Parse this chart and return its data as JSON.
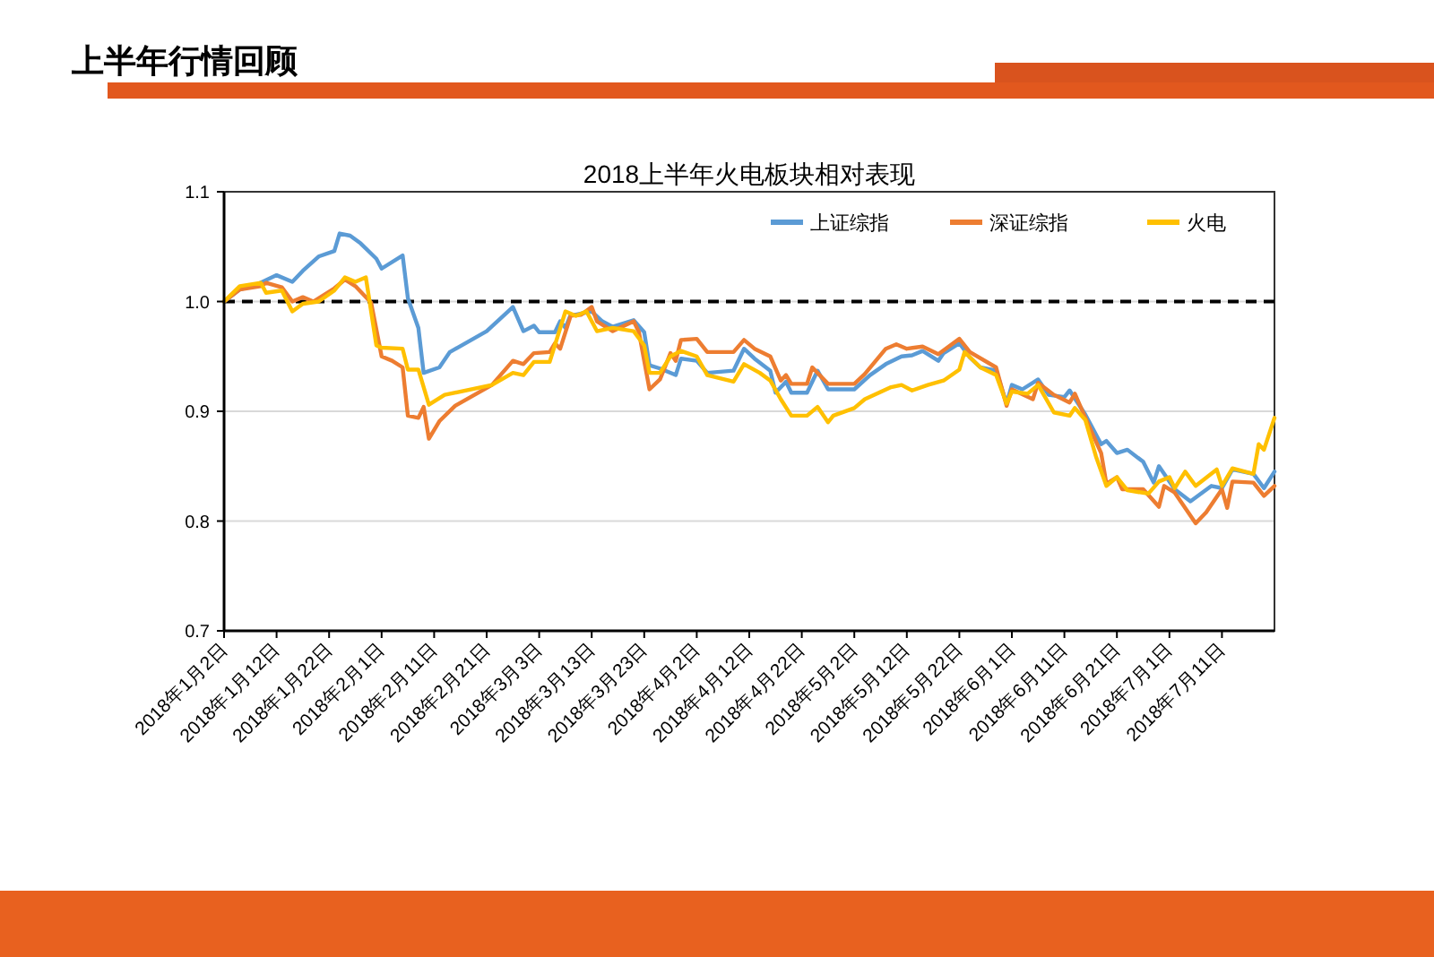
{
  "chart_data": {
    "type": "line",
    "title": "上半年行情回顾",
    "subtitle": "2018上半年火电板块相对表现",
    "xlim": [
      "2018-01-02",
      "2018-07-21"
    ],
    "xticks": [
      {
        "value": "2018-01-02",
        "label": "2018年1月2日"
      },
      {
        "value": "2018-01-12",
        "label": "2018年1月12日"
      },
      {
        "value": "2018-01-22",
        "label": "2018年1月22日"
      },
      {
        "value": "2018-02-01",
        "label": "2018年2月1日"
      },
      {
        "value": "2018-02-11",
        "label": "2018年2月11日"
      },
      {
        "value": "2018-02-21",
        "label": "2018年2月21日"
      },
      {
        "value": "2018-03-03",
        "label": "2018年3月3日"
      },
      {
        "value": "2018-03-13",
        "label": "2018年3月13日"
      },
      {
        "value": "2018-03-23",
        "label": "2018年3月23日"
      },
      {
        "value": "2018-04-02",
        "label": "2018年4月2日"
      },
      {
        "value": "2018-04-12",
        "label": "2018年4月12日"
      },
      {
        "value": "2018-04-22",
        "label": "2018年4月22日"
      },
      {
        "value": "2018-05-02",
        "label": "2018年5月2日"
      },
      {
        "value": "2018-05-12",
        "label": "2018年5月12日"
      },
      {
        "value": "2018-05-22",
        "label": "2018年5月22日"
      },
      {
        "value": "2018-06-01",
        "label": "2018年6月1日"
      },
      {
        "value": "2018-06-11",
        "label": "2018年6月11日"
      },
      {
        "value": "2018-06-21",
        "label": "2018年6月21日"
      },
      {
        "value": "2018-07-01",
        "label": "2018年7月1日"
      },
      {
        "value": "2018-07-11",
        "label": "2018年7月11日"
      }
    ],
    "ylim": [
      0.7,
      1.1
    ],
    "yticks": [
      0.7,
      0.8,
      0.9,
      {
        "value": 1,
        "label": "1.0"
      },
      1.1
    ],
    "grid": "y",
    "legend": "top right",
    "line_style": "solid",
    "ref_lines": [
      {
        "axis": "y",
        "value": 1,
        "color": "#000000",
        "line_style": "dashed"
      }
    ],
    "series": [
      {
        "name": "上证综指",
        "color": "#5b9bd5",
        "x": [
          "2018-01-02",
          "2018-01-05",
          "2018-01-08",
          "2018-01-12",
          "2018-01-15",
          "2018-01-17",
          "2018-01-20",
          "2018-01-23",
          "2018-01-24",
          "2018-01-26",
          "2018-01-28",
          "2018-01-31",
          "2018-02-01",
          "2018-02-05",
          "2018-02-06",
          "2018-02-08",
          "2018-02-09",
          "2018-02-12",
          "2018-02-14",
          "2018-02-21",
          "2018-02-26",
          "2018-02-28",
          "2018-03-02",
          "2018-03-03",
          "2018-03-06",
          "2018-03-07",
          "2018-03-08",
          "2018-03-09",
          "2018-03-10",
          "2018-03-13",
          "2018-03-15",
          "2018-03-17",
          "2018-03-21",
          "2018-03-23",
          "2018-03-24",
          "2018-03-26",
          "2018-03-29",
          "2018-03-30",
          "2018-04-02",
          "2018-04-04",
          "2018-04-09",
          "2018-04-11",
          "2018-04-13",
          "2018-04-16",
          "2018-04-17",
          "2018-04-19",
          "2018-04-20",
          "2018-04-23",
          "2018-04-25",
          "2018-04-27",
          "2018-05-02",
          "2018-05-05",
          "2018-05-08",
          "2018-05-11",
          "2018-05-13",
          "2018-05-15",
          "2018-05-18",
          "2018-05-19",
          "2018-05-22",
          "2018-05-24",
          "2018-05-26",
          "2018-05-29",
          "2018-05-31",
          "2018-06-01",
          "2018-06-03",
          "2018-06-06",
          "2018-06-08",
          "2018-06-11",
          "2018-06-12",
          "2018-06-15",
          "2018-06-18",
          "2018-06-19",
          "2018-06-21",
          "2018-06-23",
          "2018-06-26",
          "2018-06-28",
          "2018-06-29",
          "2018-07-02",
          "2018-07-05",
          "2018-07-09",
          "2018-07-11",
          "2018-07-13",
          "2018-07-17",
          "2018-07-19",
          "2018-07-21"
        ],
        "values": [
          1.0,
          1.011,
          1.015,
          1.024,
          1.018,
          1.028,
          1.041,
          1.046,
          1.062,
          1.06,
          1.053,
          1.039,
          1.03,
          1.042,
          1.003,
          0.976,
          0.935,
          0.94,
          0.954,
          0.973,
          0.995,
          0.973,
          0.978,
          0.972,
          0.972,
          0.982,
          0.976,
          0.988,
          0.988,
          0.991,
          0.982,
          0.977,
          0.983,
          0.972,
          0.942,
          0.939,
          0.933,
          0.948,
          0.946,
          0.935,
          0.937,
          0.957,
          0.948,
          0.937,
          0.917,
          0.927,
          0.917,
          0.917,
          0.937,
          0.92,
          0.92,
          0.933,
          0.943,
          0.95,
          0.951,
          0.955,
          0.946,
          0.953,
          0.962,
          0.949,
          0.94,
          0.937,
          0.907,
          0.924,
          0.92,
          0.929,
          0.915,
          0.913,
          0.919,
          0.897,
          0.87,
          0.873,
          0.862,
          0.865,
          0.854,
          0.835,
          0.85,
          0.829,
          0.818,
          0.832,
          0.83,
          0.847,
          0.843,
          0.83,
          0.845
        ]
      },
      {
        "name": "深证综指",
        "color": "#ed7d31",
        "x": [
          "2018-01-02",
          "2018-01-05",
          "2018-01-09",
          "2018-01-10",
          "2018-01-13",
          "2018-01-15",
          "2018-01-17",
          "2018-01-19",
          "2018-01-23",
          "2018-01-25",
          "2018-01-27",
          "2018-01-30",
          "2018-02-01",
          "2018-02-03",
          "2018-02-05",
          "2018-02-06",
          "2018-02-08",
          "2018-02-09",
          "2018-02-10",
          "2018-02-12",
          "2018-02-15",
          "2018-02-22",
          "2018-02-26",
          "2018-02-28",
          "2018-03-02",
          "2018-03-05",
          "2018-03-06",
          "2018-03-07",
          "2018-03-09",
          "2018-03-11",
          "2018-03-13",
          "2018-03-14",
          "2018-03-17",
          "2018-03-21",
          "2018-03-22",
          "2018-03-24",
          "2018-03-26",
          "2018-03-28",
          "2018-03-29",
          "2018-03-30",
          "2018-04-02",
          "2018-04-04",
          "2018-04-09",
          "2018-04-11",
          "2018-04-13",
          "2018-04-16",
          "2018-04-18",
          "2018-04-19",
          "2018-04-20",
          "2018-04-23",
          "2018-04-24",
          "2018-04-27",
          "2018-05-02",
          "2018-05-04",
          "2018-05-08",
          "2018-05-10",
          "2018-05-12",
          "2018-05-15",
          "2018-05-18",
          "2018-05-22",
          "2018-05-24",
          "2018-05-29",
          "2018-05-31",
          "2018-06-01",
          "2018-06-05",
          "2018-06-06",
          "2018-06-09",
          "2018-06-12",
          "2018-06-13",
          "2018-06-15",
          "2018-06-18",
          "2018-06-19",
          "2018-06-21",
          "2018-06-22",
          "2018-06-26",
          "2018-06-29",
          "2018-06-30",
          "2018-07-02",
          "2018-07-06",
          "2018-07-08",
          "2018-07-11",
          "2018-07-12",
          "2018-07-13",
          "2018-07-17",
          "2018-07-19",
          "2018-07-21"
        ],
        "values": [
          1.0,
          1.011,
          1.014,
          1.017,
          1.013,
          1.0,
          1.004,
          1.0,
          1.012,
          1.02,
          1.014,
          0.999,
          0.95,
          0.946,
          0.94,
          0.896,
          0.894,
          0.904,
          0.875,
          0.891,
          0.905,
          0.924,
          0.946,
          0.943,
          0.953,
          0.954,
          0.962,
          0.957,
          0.987,
          0.988,
          0.995,
          0.982,
          0.973,
          0.982,
          0.972,
          0.92,
          0.929,
          0.953,
          0.946,
          0.965,
          0.966,
          0.954,
          0.954,
          0.965,
          0.957,
          0.95,
          0.928,
          0.933,
          0.925,
          0.925,
          0.94,
          0.925,
          0.925,
          0.934,
          0.957,
          0.961,
          0.957,
          0.959,
          0.952,
          0.966,
          0.954,
          0.94,
          0.905,
          0.92,
          0.911,
          0.926,
          0.915,
          0.908,
          0.916,
          0.894,
          0.862,
          0.834,
          0.84,
          0.829,
          0.829,
          0.813,
          0.832,
          0.826,
          0.798,
          0.808,
          0.829,
          0.812,
          0.836,
          0.835,
          0.823,
          0.832
        ]
      },
      {
        "name": "火电",
        "color": "#ffc000",
        "x": [
          "2018-01-02",
          "2018-01-05",
          "2018-01-09",
          "2018-01-10",
          "2018-01-13",
          "2018-01-15",
          "2018-01-17",
          "2018-01-20",
          "2018-01-23",
          "2018-01-25",
          "2018-01-27",
          "2018-01-29",
          "2018-01-31",
          "2018-02-01",
          "2018-02-05",
          "2018-02-06",
          "2018-02-08",
          "2018-02-10",
          "2018-02-13",
          "2018-02-22",
          "2018-02-26",
          "2018-02-28",
          "2018-03-02",
          "2018-03-05",
          "2018-03-08",
          "2018-03-10",
          "2018-03-12",
          "2018-03-14",
          "2018-03-17",
          "2018-03-21",
          "2018-03-23",
          "2018-03-24",
          "2018-03-26",
          "2018-03-28",
          "2018-03-30",
          "2018-04-02",
          "2018-04-04",
          "2018-04-09",
          "2018-04-11",
          "2018-04-14",
          "2018-04-16",
          "2018-04-18",
          "2018-04-20",
          "2018-04-23",
          "2018-04-25",
          "2018-04-27",
          "2018-04-28",
          "2018-05-02",
          "2018-05-04",
          "2018-05-09",
          "2018-05-11",
          "2018-05-13",
          "2018-05-16",
          "2018-05-19",
          "2018-05-22",
          "2018-05-23",
          "2018-05-26",
          "2018-05-29",
          "2018-05-31",
          "2018-06-01",
          "2018-06-04",
          "2018-06-06",
          "2018-06-09",
          "2018-06-12",
          "2018-06-13",
          "2018-06-15",
          "2018-06-17",
          "2018-06-19",
          "2018-06-21",
          "2018-06-23",
          "2018-06-27",
          "2018-06-29",
          "2018-07-01",
          "2018-07-02",
          "2018-07-04",
          "2018-07-06",
          "2018-07-10",
          "2018-07-11",
          "2018-07-13",
          "2018-07-17",
          "2018-07-18",
          "2018-07-19",
          "2018-07-21"
        ],
        "values": [
          1.0,
          1.014,
          1.017,
          1.008,
          1.01,
          0.991,
          0.998,
          1.0,
          1.01,
          1.022,
          1.018,
          1.022,
          0.96,
          0.958,
          0.957,
          0.938,
          0.938,
          0.906,
          0.915,
          0.924,
          0.935,
          0.933,
          0.945,
          0.945,
          0.991,
          0.987,
          0.991,
          0.973,
          0.976,
          0.973,
          0.96,
          0.935,
          0.935,
          0.95,
          0.955,
          0.95,
          0.933,
          0.927,
          0.943,
          0.935,
          0.928,
          0.911,
          0.896,
          0.896,
          0.904,
          0.89,
          0.896,
          0.903,
          0.911,
          0.922,
          0.924,
          0.919,
          0.924,
          0.928,
          0.938,
          0.954,
          0.94,
          0.933,
          0.907,
          0.918,
          0.916,
          0.924,
          0.899,
          0.896,
          0.903,
          0.892,
          0.859,
          0.832,
          0.84,
          0.828,
          0.825,
          0.836,
          0.84,
          0.83,
          0.845,
          0.832,
          0.847,
          0.832,
          0.848,
          0.843,
          0.87,
          0.865,
          0.894
        ]
      }
    ]
  }
}
